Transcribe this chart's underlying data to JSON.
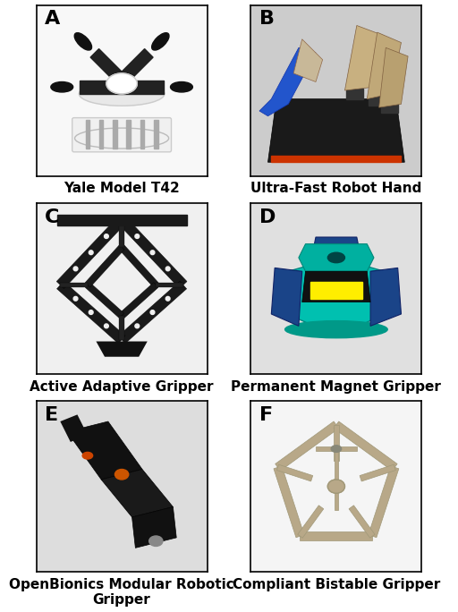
{
  "panels": [
    {
      "label": "A",
      "caption": "Yale Model T42",
      "row": 0,
      "col": 0
    },
    {
      "label": "B",
      "caption": "Ultra-Fast Robot Hand",
      "row": 0,
      "col": 1
    },
    {
      "label": "C",
      "caption": "Active Adaptive Gripper",
      "row": 1,
      "col": 0
    },
    {
      "label": "D",
      "caption": "Permanent Magnet Gripper",
      "row": 1,
      "col": 1
    },
    {
      "label": "E",
      "caption": "OpenBionics Modular Robotic\nGripper",
      "row": 2,
      "col": 0
    },
    {
      "label": "F",
      "caption": "Compliant Bistable Gripper",
      "row": 2,
      "col": 1
    }
  ],
  "background_color": "#ffffff",
  "label_fontsize": 16,
  "caption_fontsize": 11,
  "label_color": "#000000",
  "caption_color": "#000000",
  "border_color": "#000000",
  "border_linewidth": 1.2,
  "figsize": [
    5.12,
    6.84
  ],
  "dpi": 100
}
